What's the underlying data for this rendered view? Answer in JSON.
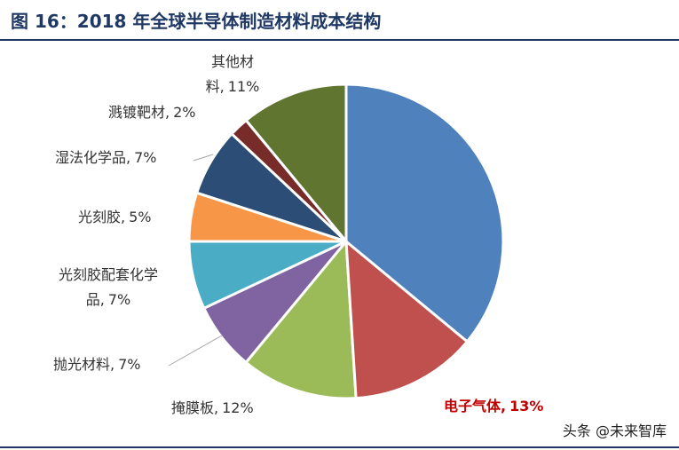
{
  "chart_data": {
    "type": "pie",
    "title": "图 16：2018 年全球半导体制造材料成本结构",
    "categories": [
      null,
      "电子气体,",
      "掩膜板,",
      "抛光材料,",
      "光刻胶配套化学品,",
      "光刻胶,",
      "湿法化学品,",
      "溅镀靶材,",
      "其他材料,"
    ],
    "values": [
      36,
      13,
      12,
      7,
      7,
      5,
      7,
      2,
      11
    ],
    "value_labels": [
      null,
      "13%",
      "12%",
      "7%",
      "7%",
      "5%",
      "7%",
      "2%",
      "11%"
    ],
    "colors": [
      "#4f81bd",
      "#c0504d",
      "#9bbb59",
      "#8064a2",
      "#4bacc6",
      "#f79646",
      "#2c4d75",
      "#772c2a",
      "#5f7530"
    ],
    "watermark": "头条 @未来智库"
  }
}
